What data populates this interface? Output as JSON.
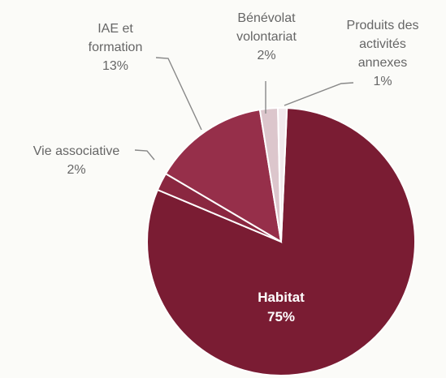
{
  "chart_data": {
    "type": "pie",
    "title": "",
    "slices": [
      {
        "label_lines": [
          "Habitat",
          "75%"
        ],
        "value": 75,
        "color": "#7a1c33"
      },
      {
        "label_lines": [
          "Vie associative",
          "2%"
        ],
        "value": 2,
        "color": "#8a2740"
      },
      {
        "label_lines": [
          "IAE et",
          "formation",
          "13%"
        ],
        "value": 13,
        "color": "#962f4a"
      },
      {
        "label_lines": [
          "Bénévolat",
          "volontariat",
          "2%"
        ],
        "value": 2,
        "color": "#dcc6cc"
      },
      {
        "label_lines": [
          "Produits des",
          "activités",
          "annexes",
          "1%"
        ],
        "value": 1,
        "color": "#f1e9ec"
      }
    ],
    "legend": "none",
    "label_position": "outside-with-leaders"
  }
}
